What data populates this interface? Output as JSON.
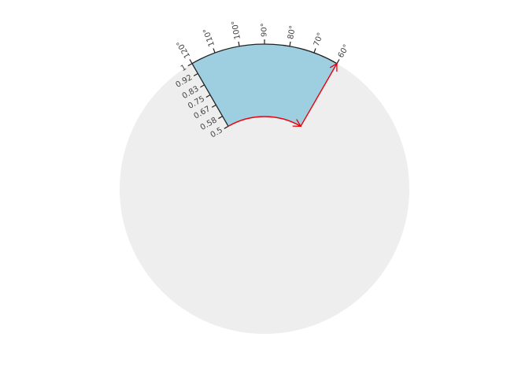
{
  "chart_data": {
    "type": "polar-sector",
    "angle_axis": {
      "unit": "°",
      "range": [
        60,
        120
      ],
      "ticks": [
        120,
        110,
        100,
        90,
        80,
        70,
        60
      ],
      "tick_labels": [
        "120°",
        "110°",
        "100°",
        "90°",
        "80°",
        "70°",
        "60°"
      ]
    },
    "radial_axis": {
      "range": [
        0.5,
        1
      ],
      "ticks": [
        1,
        0.92,
        0.83,
        0.75,
        0.67,
        0.58,
        0.5
      ],
      "tick_labels": [
        "1",
        "0.92",
        "0.83",
        "0.75",
        "0.67",
        "0.58",
        "0.5"
      ]
    },
    "sector": {
      "theta_start": 60,
      "theta_end": 120,
      "r_inner": 0.5,
      "r_outer": 1
    },
    "arrows": [
      {
        "from": {
          "theta": 120,
          "r": 0.5
        },
        "to": {
          "theta": 60,
          "r": 0.5
        },
        "path": "arc"
      },
      {
        "from": {
          "theta": 60,
          "r": 0.5
        },
        "to": {
          "theta": 60,
          "r": 1
        },
        "path": "radial"
      }
    ],
    "colors": {
      "background_disk": "#eeeeee",
      "sector_fill": "#9ecfe0",
      "axis": "#222222",
      "arrow": "#e8000b"
    }
  }
}
